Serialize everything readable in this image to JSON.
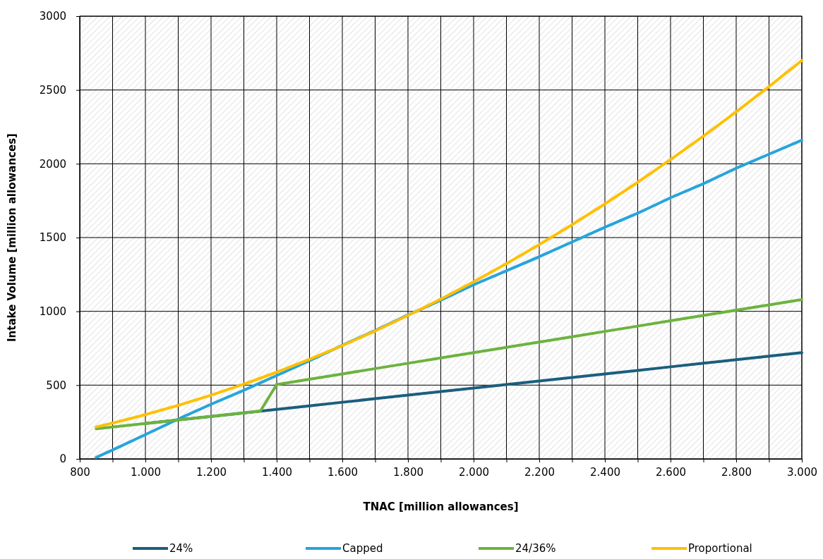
{
  "chart_data": {
    "type": "line",
    "xlabel": "TNAC [million allowances]",
    "ylabel": "Intake Volume [million allowances]",
    "x": [
      850,
      900,
      1000,
      1100,
      1200,
      1300,
      1350,
      1400,
      1500,
      1600,
      1700,
      1800,
      1900,
      2000,
      2100,
      2200,
      2300,
      2400,
      2500,
      2600,
      2700,
      2800,
      2900,
      3000
    ],
    "series": [
      {
        "name": "24%",
        "color": "#1b5e7e",
        "values": [
          null,
          null,
          240,
          264,
          288,
          312,
          324,
          336,
          360,
          384,
          408,
          432,
          456,
          480,
          504,
          528,
          552,
          576,
          600,
          624,
          648,
          672,
          696,
          720
        ]
      },
      {
        "name": "Capped",
        "color": "#27a4dc",
        "values": [
          10,
          60,
          165,
          270,
          370,
          465,
          515,
          565,
          665,
          770,
          870,
          975,
          1075,
          1180,
          1275,
          1370,
          1470,
          1570,
          1665,
          1770,
          1865,
          1970,
          2065,
          2160
        ]
      },
      {
        "name": "24/36%",
        "color": "#6cb33f",
        "values": [
          204,
          216,
          240,
          264,
          288,
          312,
          324,
          504,
          540,
          576,
          612,
          648,
          684,
          720,
          756,
          792,
          828,
          864,
          900,
          936,
          972,
          1008,
          1044,
          1080
        ]
      },
      {
        "name": "Proportional",
        "color": "#ffc000",
        "values": [
          217,
          243,
          300,
          363,
          432,
          507,
          547,
          588,
          675,
          768,
          867,
          972,
          1083,
          1200,
          1323,
          1452,
          1587,
          1728,
          1875,
          2028,
          2187,
          2352,
          2523,
          2700
        ]
      }
    ],
    "xlim": [
      800,
      3000
    ],
    "xticks": [
      800,
      {
        "value": 900,
        "label": null
      },
      {
        "value": 1000,
        "label": "1.000"
      },
      {
        "value": 1100,
        "label": null
      },
      {
        "value": 1200,
        "label": "1.200"
      },
      {
        "value": 1300,
        "label": null
      },
      {
        "value": 1400,
        "label": "1.400"
      },
      {
        "value": 1500,
        "label": null
      },
      {
        "value": 1600,
        "label": "1.600"
      },
      {
        "value": 1700,
        "label": null
      },
      {
        "value": 1800,
        "label": "1.800"
      },
      {
        "value": 1900,
        "label": null
      },
      {
        "value": 2000,
        "label": "2.000"
      },
      {
        "value": 2100,
        "label": null
      },
      {
        "value": 2200,
        "label": "2.200"
      },
      {
        "value": 2300,
        "label": null
      },
      {
        "value": 2400,
        "label": "2.400"
      },
      {
        "value": 2500,
        "label": null
      },
      {
        "value": 2600,
        "label": "2.600"
      },
      {
        "value": 2700,
        "label": null
      },
      {
        "value": 2800,
        "label": "2.800"
      },
      {
        "value": 2900,
        "label": null
      },
      {
        "value": 3000,
        "label": "3.000"
      }
    ],
    "ylim": [
      0,
      3000
    ],
    "yticks": [
      0,
      500,
      1000,
      1500,
      2000,
      2500,
      3000
    ],
    "grid": true,
    "legend": "bottom",
    "marker": "none",
    "line_style": "solid"
  }
}
